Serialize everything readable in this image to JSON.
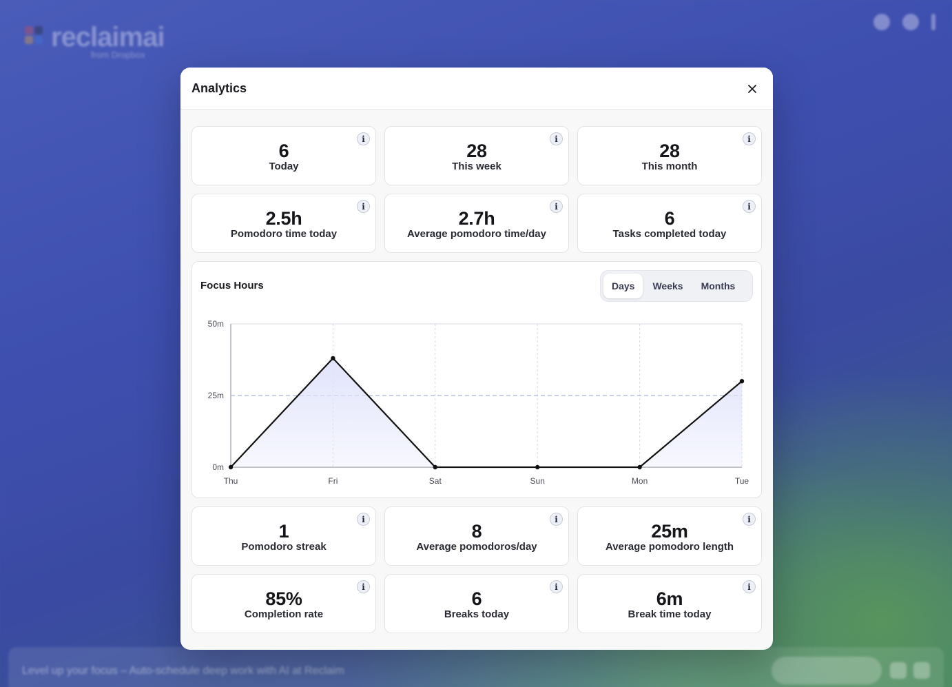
{
  "background": {
    "logo_text": "reclaimai",
    "logo_sub": "from Dropbox",
    "bottom_banner": "Level up your focus – Auto-schedule deep work with AI at Reclaim"
  },
  "modal": {
    "title": "Analytics",
    "close_icon": "close-icon"
  },
  "stats_top": [
    {
      "value": "6",
      "label": "Today"
    },
    {
      "value": "28",
      "label": "This week"
    },
    {
      "value": "28",
      "label": "This month"
    },
    {
      "value": "2.5h",
      "label": "Pomodoro time today"
    },
    {
      "value": "2.7h",
      "label": "Average pomodoro time/day"
    },
    {
      "value": "6",
      "label": "Tasks completed today"
    }
  ],
  "stats_bottom": [
    {
      "value": "1",
      "label": "Pomodoro streak"
    },
    {
      "value": "8",
      "label": "Average pomodoros/day"
    },
    {
      "value": "25m",
      "label": "Average pomodoro length"
    },
    {
      "value": "85%",
      "label": "Completion rate"
    },
    {
      "value": "6",
      "label": "Breaks today"
    },
    {
      "value": "6m",
      "label": "Break time today"
    }
  ],
  "info_label": "i",
  "chart": {
    "title": "Focus Hours",
    "range_tabs": [
      "Days",
      "Weeks",
      "Months"
    ],
    "active_tab": "Days"
  },
  "chart_data": {
    "type": "area",
    "categories": [
      "Thu",
      "Fri",
      "Sat",
      "Sun",
      "Mon",
      "Tue"
    ],
    "series": [
      {
        "values": [
          0,
          38,
          0,
          0,
          0,
          30
        ]
      }
    ],
    "y_unit": "m",
    "ylim": [
      0,
      50
    ],
    "y_ticks": [
      0,
      25,
      50
    ],
    "y_tick_labels": [
      "0m",
      "25m",
      "50m"
    ],
    "reference_line": 25,
    "grid": true,
    "colors": {
      "line": "#111111",
      "fill": "#dfe2fb",
      "reference": "#b9bde0",
      "grid": "#d9dae0"
    }
  }
}
